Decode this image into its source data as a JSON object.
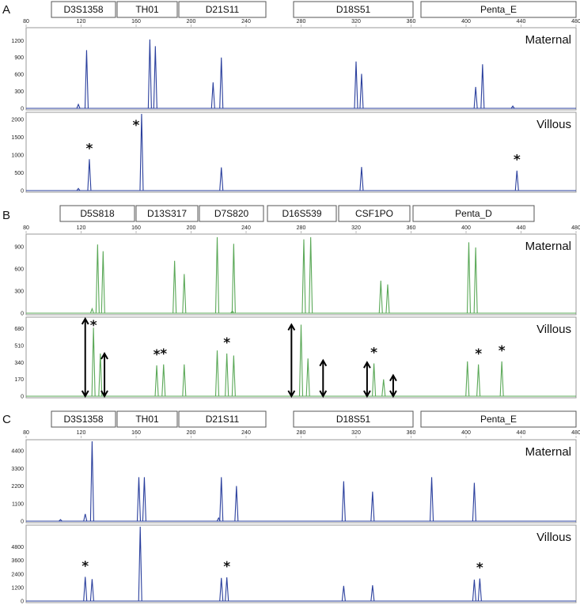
{
  "chart_data": [
    {
      "type": "line",
      "panel": "A",
      "color": "#2a3f9d",
      "x_axis": {
        "ticks": [
          80,
          120,
          160,
          200,
          240,
          280,
          320,
          360,
          400,
          440,
          480
        ],
        "range": [
          80,
          480
        ]
      },
      "loci": [
        "D3S1358",
        "TH01",
        "D21S11",
        "D18S51",
        "Penta_E"
      ],
      "tracks": [
        {
          "label": "Maternal",
          "ylim": [
            0,
            1400
          ],
          "yticks": [
            0,
            300,
            600,
            900,
            1200
          ],
          "peaks": [
            [
              124,
              1030
            ],
            [
              170,
              1220
            ],
            [
              174,
              1100
            ],
            [
              216,
              460
            ],
            [
              222,
              900
            ],
            [
              320,
              830
            ],
            [
              324,
              610
            ],
            [
              407,
              380
            ],
            [
              412,
              780
            ],
            [
              434,
              40
            ],
            [
              118,
              70
            ]
          ],
          "asterisks": []
        },
        {
          "label": "Villous",
          "ylim": [
            0,
            2150
          ],
          "yticks": [
            0,
            500,
            1000,
            1500,
            2000
          ],
          "peaks": [
            [
              126,
              880
            ],
            [
              164,
              2150
            ],
            [
              222,
              650
            ],
            [
              324,
              660
            ],
            [
              437,
              560
            ],
            [
              118,
              60
            ]
          ],
          "asterisks": [
            126,
            160,
            437
          ]
        }
      ],
      "arrows": []
    },
    {
      "type": "line",
      "panel": "B",
      "color": "#5aa857",
      "x_axis": {
        "ticks": [
          80,
          120,
          160,
          200,
          240,
          280,
          320,
          360,
          400,
          440,
          480
        ],
        "range": [
          80,
          480
        ]
      },
      "loci": [
        "D5S818",
        "D13S317",
        "D7S820",
        "D16S539",
        "CSF1PO",
        "Penta_D"
      ],
      "tracks": [
        {
          "label": "Maternal",
          "ylim": [
            0,
            1050
          ],
          "yticks": [
            0,
            300,
            600,
            900
          ],
          "peaks": [
            [
              132,
              930
            ],
            [
              136,
              840
            ],
            [
              188,
              710
            ],
            [
              195,
              530
            ],
            [
              219,
              1030
            ],
            [
              231,
              940
            ],
            [
              282,
              1000
            ],
            [
              287,
              1030
            ],
            [
              338,
              440
            ],
            [
              343,
              390
            ],
            [
              402,
              960
            ],
            [
              407,
              890
            ],
            [
              128,
              60
            ],
            [
              230,
              30
            ]
          ],
          "asterisks": []
        },
        {
          "label": "Villous",
          "ylim": [
            0,
            780
          ],
          "yticks": [
            0,
            170,
            340,
            510,
            680
          ],
          "peaks": [
            [
              129,
              690
            ],
            [
              134,
              430
            ],
            [
              175,
              310
            ],
            [
              180,
              320
            ],
            [
              195,
              320
            ],
            [
              219,
              460
            ],
            [
              226,
              430
            ],
            [
              231,
              410
            ],
            [
              280,
              720
            ],
            [
              285,
              380
            ],
            [
              333,
              330
            ],
            [
              340,
              170
            ],
            [
              401,
              350
            ],
            [
              409,
              320
            ],
            [
              426,
              350
            ]
          ],
          "asterisks": [
            129,
            175,
            180,
            226,
            333,
            409,
            426
          ]
        }
      ],
      "arrows": [
        {
          "x": 123,
          "from": 0,
          "to": 790
        },
        {
          "x": 137,
          "from": 0,
          "to": 430
        },
        {
          "x": 273,
          "from": 0,
          "to": 720
        },
        {
          "x": 296,
          "from": 0,
          "to": 360
        },
        {
          "x": 328,
          "from": 0,
          "to": 340
        },
        {
          "x": 347,
          "from": 0,
          "to": 210
        }
      ]
    },
    {
      "type": "line",
      "panel": "C",
      "color": "#2a3f9d",
      "x_axis": {
        "ticks": [
          80,
          120,
          160,
          200,
          240,
          280,
          320,
          360,
          400,
          440,
          480
        ],
        "range": [
          80,
          480
        ]
      },
      "loci": [
        "D3S1358",
        "TH01",
        "D21S11",
        "D18S51",
        "Penta_E"
      ],
      "tracks": [
        {
          "label": "Maternal",
          "ylim": [
            0,
            5000
          ],
          "yticks": [
            0,
            1100,
            2200,
            3300,
            4400
          ],
          "peaks": [
            [
              128,
              5000
            ],
            [
              123,
              450
            ],
            [
              162,
              2750
            ],
            [
              166,
              2750
            ],
            [
              222,
              2750
            ],
            [
              233,
              2200
            ],
            [
              311,
              2500
            ],
            [
              332,
              1850
            ],
            [
              375,
              2750
            ],
            [
              406,
              2400
            ],
            [
              105,
              100
            ],
            [
              220,
              200
            ]
          ],
          "asterisks": []
        },
        {
          "label": "Villous",
          "ylim": [
            0,
            6600
          ],
          "yticks": [
            0,
            1200,
            2400,
            3600,
            4800
          ],
          "peaks": [
            [
              123,
              2150
            ],
            [
              128,
              1950
            ],
            [
              163,
              6600
            ],
            [
              222,
              2050
            ],
            [
              226,
              2100
            ],
            [
              311,
              1350
            ],
            [
              332,
              1400
            ],
            [
              406,
              1900
            ],
            [
              410,
              2000
            ]
          ],
          "asterisks": [
            123,
            226,
            410
          ]
        }
      ],
      "arrows": []
    }
  ]
}
